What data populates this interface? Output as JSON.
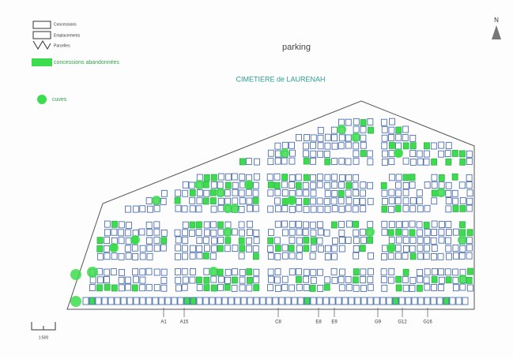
{
  "legend": {
    "items": [
      {
        "label": "Concessions"
      },
      {
        "label": "Emplacements"
      },
      {
        "label": "Parcelles"
      },
      {
        "label": "concessions abandonnées"
      },
      {
        "label": "cuves"
      }
    ]
  },
  "map": {
    "title": "CIMETIERE de LAURENAH",
    "parking": "parking",
    "north": "N",
    "scale": "1:500",
    "row_labels": [
      "A1",
      "A15",
      "C8",
      "E8",
      "E9",
      "G9",
      "G12",
      "G16"
    ]
  }
}
